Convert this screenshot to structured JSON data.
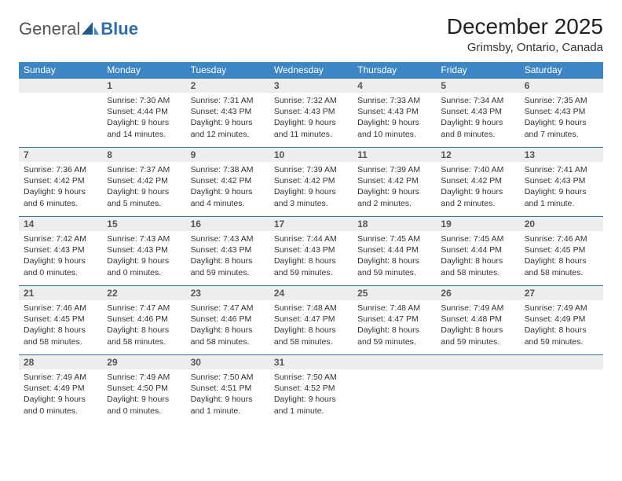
{
  "brand": {
    "part1": "General",
    "part2": "Blue"
  },
  "title": "December 2025",
  "location": "Grimsby, Ontario, Canada",
  "theme": {
    "header_bg": "#3d86c6",
    "header_fg": "#ffffff",
    "daynum_bg": "#ecedee",
    "border_color": "#2f6fa7",
    "text_color": "#333333",
    "page_bg": "#ffffff",
    "sail_color": "#1f5a8a"
  },
  "day_headers": [
    "Sunday",
    "Monday",
    "Tuesday",
    "Wednesday",
    "Thursday",
    "Friday",
    "Saturday"
  ],
  "weeks": [
    [
      {
        "n": "",
        "sunrise": "",
        "sunset": "",
        "daylight": ""
      },
      {
        "n": "1",
        "sunrise": "Sunrise: 7:30 AM",
        "sunset": "Sunset: 4:44 PM",
        "daylight": "Daylight: 9 hours and 14 minutes."
      },
      {
        "n": "2",
        "sunrise": "Sunrise: 7:31 AM",
        "sunset": "Sunset: 4:43 PM",
        "daylight": "Daylight: 9 hours and 12 minutes."
      },
      {
        "n": "3",
        "sunrise": "Sunrise: 7:32 AM",
        "sunset": "Sunset: 4:43 PM",
        "daylight": "Daylight: 9 hours and 11 minutes."
      },
      {
        "n": "4",
        "sunrise": "Sunrise: 7:33 AM",
        "sunset": "Sunset: 4:43 PM",
        "daylight": "Daylight: 9 hours and 10 minutes."
      },
      {
        "n": "5",
        "sunrise": "Sunrise: 7:34 AM",
        "sunset": "Sunset: 4:43 PM",
        "daylight": "Daylight: 9 hours and 8 minutes."
      },
      {
        "n": "6",
        "sunrise": "Sunrise: 7:35 AM",
        "sunset": "Sunset: 4:43 PM",
        "daylight": "Daylight: 9 hours and 7 minutes."
      }
    ],
    [
      {
        "n": "7",
        "sunrise": "Sunrise: 7:36 AM",
        "sunset": "Sunset: 4:42 PM",
        "daylight": "Daylight: 9 hours and 6 minutes."
      },
      {
        "n": "8",
        "sunrise": "Sunrise: 7:37 AM",
        "sunset": "Sunset: 4:42 PM",
        "daylight": "Daylight: 9 hours and 5 minutes."
      },
      {
        "n": "9",
        "sunrise": "Sunrise: 7:38 AM",
        "sunset": "Sunset: 4:42 PM",
        "daylight": "Daylight: 9 hours and 4 minutes."
      },
      {
        "n": "10",
        "sunrise": "Sunrise: 7:39 AM",
        "sunset": "Sunset: 4:42 PM",
        "daylight": "Daylight: 9 hours and 3 minutes."
      },
      {
        "n": "11",
        "sunrise": "Sunrise: 7:39 AM",
        "sunset": "Sunset: 4:42 PM",
        "daylight": "Daylight: 9 hours and 2 minutes."
      },
      {
        "n": "12",
        "sunrise": "Sunrise: 7:40 AM",
        "sunset": "Sunset: 4:42 PM",
        "daylight": "Daylight: 9 hours and 2 minutes."
      },
      {
        "n": "13",
        "sunrise": "Sunrise: 7:41 AM",
        "sunset": "Sunset: 4:43 PM",
        "daylight": "Daylight: 9 hours and 1 minute."
      }
    ],
    [
      {
        "n": "14",
        "sunrise": "Sunrise: 7:42 AM",
        "sunset": "Sunset: 4:43 PM",
        "daylight": "Daylight: 9 hours and 0 minutes."
      },
      {
        "n": "15",
        "sunrise": "Sunrise: 7:43 AM",
        "sunset": "Sunset: 4:43 PM",
        "daylight": "Daylight: 9 hours and 0 minutes."
      },
      {
        "n": "16",
        "sunrise": "Sunrise: 7:43 AM",
        "sunset": "Sunset: 4:43 PM",
        "daylight": "Daylight: 8 hours and 59 minutes."
      },
      {
        "n": "17",
        "sunrise": "Sunrise: 7:44 AM",
        "sunset": "Sunset: 4:43 PM",
        "daylight": "Daylight: 8 hours and 59 minutes."
      },
      {
        "n": "18",
        "sunrise": "Sunrise: 7:45 AM",
        "sunset": "Sunset: 4:44 PM",
        "daylight": "Daylight: 8 hours and 59 minutes."
      },
      {
        "n": "19",
        "sunrise": "Sunrise: 7:45 AM",
        "sunset": "Sunset: 4:44 PM",
        "daylight": "Daylight: 8 hours and 58 minutes."
      },
      {
        "n": "20",
        "sunrise": "Sunrise: 7:46 AM",
        "sunset": "Sunset: 4:45 PM",
        "daylight": "Daylight: 8 hours and 58 minutes."
      }
    ],
    [
      {
        "n": "21",
        "sunrise": "Sunrise: 7:46 AM",
        "sunset": "Sunset: 4:45 PM",
        "daylight": "Daylight: 8 hours and 58 minutes."
      },
      {
        "n": "22",
        "sunrise": "Sunrise: 7:47 AM",
        "sunset": "Sunset: 4:46 PM",
        "daylight": "Daylight: 8 hours and 58 minutes."
      },
      {
        "n": "23",
        "sunrise": "Sunrise: 7:47 AM",
        "sunset": "Sunset: 4:46 PM",
        "daylight": "Daylight: 8 hours and 58 minutes."
      },
      {
        "n": "24",
        "sunrise": "Sunrise: 7:48 AM",
        "sunset": "Sunset: 4:47 PM",
        "daylight": "Daylight: 8 hours and 58 minutes."
      },
      {
        "n": "25",
        "sunrise": "Sunrise: 7:48 AM",
        "sunset": "Sunset: 4:47 PM",
        "daylight": "Daylight: 8 hours and 59 minutes."
      },
      {
        "n": "26",
        "sunrise": "Sunrise: 7:49 AM",
        "sunset": "Sunset: 4:48 PM",
        "daylight": "Daylight: 8 hours and 59 minutes."
      },
      {
        "n": "27",
        "sunrise": "Sunrise: 7:49 AM",
        "sunset": "Sunset: 4:49 PM",
        "daylight": "Daylight: 8 hours and 59 minutes."
      }
    ],
    [
      {
        "n": "28",
        "sunrise": "Sunrise: 7:49 AM",
        "sunset": "Sunset: 4:49 PM",
        "daylight": "Daylight: 9 hours and 0 minutes."
      },
      {
        "n": "29",
        "sunrise": "Sunrise: 7:49 AM",
        "sunset": "Sunset: 4:50 PM",
        "daylight": "Daylight: 9 hours and 0 minutes."
      },
      {
        "n": "30",
        "sunrise": "Sunrise: 7:50 AM",
        "sunset": "Sunset: 4:51 PM",
        "daylight": "Daylight: 9 hours and 1 minute."
      },
      {
        "n": "31",
        "sunrise": "Sunrise: 7:50 AM",
        "sunset": "Sunset: 4:52 PM",
        "daylight": "Daylight: 9 hours and 1 minute."
      },
      {
        "n": "",
        "sunrise": "",
        "sunset": "",
        "daylight": ""
      },
      {
        "n": "",
        "sunrise": "",
        "sunset": "",
        "daylight": ""
      },
      {
        "n": "",
        "sunrise": "",
        "sunset": "",
        "daylight": ""
      }
    ]
  ]
}
